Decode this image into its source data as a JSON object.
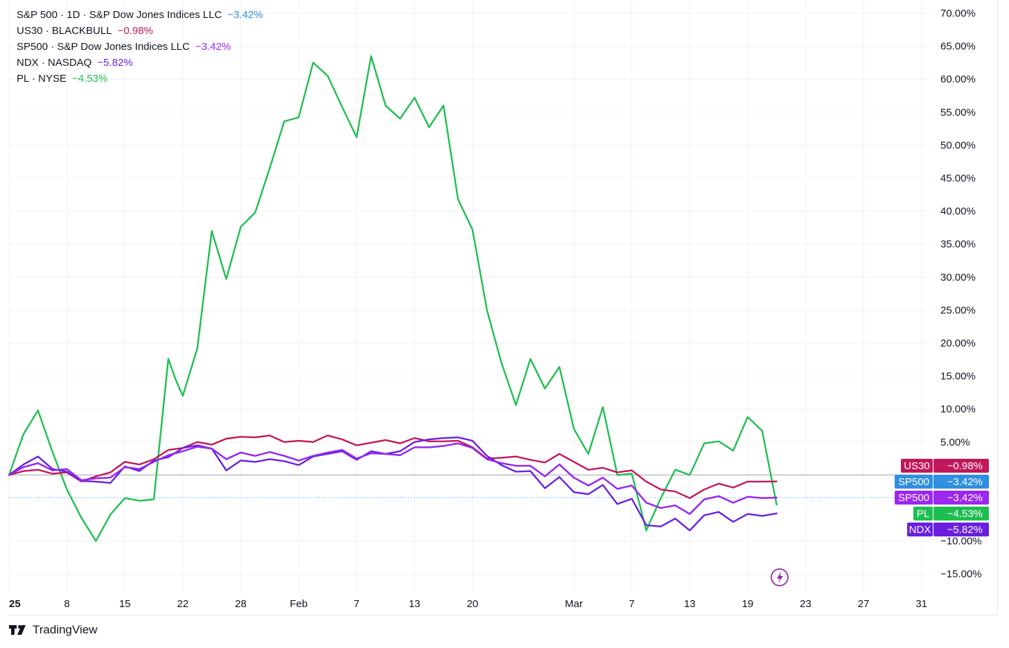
{
  "legend": [
    {
      "symbol": "S&P 500 · 1D · S&P Dow Jones Indices LLC",
      "change": "−3.42%",
      "color": "#2f8fe0"
    },
    {
      "symbol": "US30 · BLACKBULL",
      "change": "−0.98%",
      "color": "#c2185b"
    },
    {
      "symbol": "SP500 · S&P Dow Jones Indices LLC",
      "change": "−3.42%",
      "color": "#9c27f0"
    },
    {
      "symbol": "NDX · NASDAQ",
      "change": "−5.82%",
      "color": "#6a1fe0"
    },
    {
      "symbol": "PL · NYSE",
      "change": "−4.53%",
      "color": "#1fbf4f"
    }
  ],
  "branding": {
    "name": "TradingView",
    "logo_icon": "tradingview-logo-icon"
  },
  "flash_icon": "lightning-icon",
  "chart_data": {
    "type": "line",
    "y_axis": {
      "ticks": [
        "70.00%",
        "65.00%",
        "60.00%",
        "55.00%",
        "50.00%",
        "45.00%",
        "40.00%",
        "35.00%",
        "30.00%",
        "25.00%",
        "20.00%",
        "15.00%",
        "10.00%",
        "5.00%",
        "−10.00%",
        "−15.00%"
      ],
      "tick_values": [
        70,
        65,
        60,
        55,
        50,
        45,
        40,
        35,
        30,
        25,
        20,
        15,
        10,
        5,
        -10,
        -15
      ],
      "ylim": [
        -16.5,
        71.8
      ],
      "position": "right",
      "grid": true
    },
    "x_axis": {
      "ticks": [
        {
          "label": "25",
          "d": 0,
          "bold": true
        },
        {
          "label": "8",
          "d": 8
        },
        {
          "label": "15",
          "d": 16
        },
        {
          "label": "22",
          "d": 24
        },
        {
          "label": "28",
          "d": 32
        },
        {
          "label": "Feb",
          "d": 40
        },
        {
          "label": "7",
          "d": 48
        },
        {
          "label": "13",
          "d": 56
        },
        {
          "label": "20",
          "d": 64
        },
        {
          "label": "Mar",
          "d": 78
        },
        {
          "label": "7",
          "d": 86
        },
        {
          "label": "13",
          "d": 94
        },
        {
          "label": "19",
          "d": 102
        },
        {
          "label": "23",
          "d": 110
        },
        {
          "label": "27",
          "d": 118
        },
        {
          "label": "31",
          "d": 126
        }
      ],
      "xlim": [
        0,
        127
      ]
    },
    "baseline": 0,
    "series": [
      {
        "name": "PL",
        "color": "#1fbf4f",
        "x": [
          0,
          2,
          4,
          6,
          8,
          10,
          12,
          14,
          16,
          18,
          20,
          22,
          23,
          24,
          26,
          28,
          30,
          32,
          34,
          36,
          38,
          40,
          42,
          44,
          46,
          48,
          50,
          52,
          54,
          56,
          58,
          60,
          62,
          64,
          66,
          68,
          70,
          72,
          74,
          76,
          78,
          80,
          82,
          84,
          86,
          88,
          90,
          92,
          94,
          96,
          98,
          100,
          102,
          104,
          106
        ],
        "values": [
          0,
          6.2,
          9.8,
          3.5,
          -2.2,
          -6.5,
          -10.0,
          -6.0,
          -3.5,
          -3.9,
          -3.7,
          17.6,
          14.5,
          12.0,
          19.2,
          37.0,
          29.7,
          37.6,
          39.8,
          46.5,
          53.6,
          54.2,
          62.5,
          60.5,
          55.8,
          51.2,
          63.5,
          56.0,
          54.0,
          57.2,
          52.7,
          56.0,
          41.8,
          37.2,
          25.0,
          17.0,
          10.6,
          17.6,
          13.1,
          16.4,
          7.0,
          3.2,
          10.3,
          0,
          0.2,
          -8.4,
          -3.5,
          0.8,
          0,
          4.8,
          5.1,
          3.7,
          8.8,
          6.7,
          -4.5
        ]
      },
      {
        "name": "US30",
        "color": "#c2185b",
        "x": [
          0,
          2,
          4,
          6,
          8,
          10,
          12,
          14,
          16,
          18,
          20,
          22,
          24,
          26,
          28,
          30,
          32,
          34,
          36,
          38,
          40,
          42,
          44,
          46,
          48,
          50,
          52,
          54,
          56,
          58,
          60,
          62,
          64,
          66,
          68,
          70,
          72,
          74,
          76,
          78,
          80,
          82,
          84,
          86,
          88,
          90,
          92,
          94,
          96,
          98,
          100,
          102,
          104,
          106
        ],
        "values": [
          0,
          0.6,
          0.8,
          0.2,
          0.4,
          -1.0,
          -0.2,
          0.4,
          2.0,
          1.6,
          2.4,
          3.8,
          4.1,
          5.0,
          4.6,
          5.5,
          5.8,
          5.7,
          6.0,
          5.0,
          5.2,
          5.0,
          6.0,
          5.4,
          4.5,
          4.9,
          5.3,
          4.8,
          5.6,
          5.1,
          5.1,
          5.2,
          4.2,
          2.5,
          2.6,
          2.8,
          2.3,
          1.9,
          3.2,
          2.0,
          0.8,
          1.1,
          0.4,
          0.7,
          -1.0,
          -2.2,
          -2.5,
          -3.5,
          -2.2,
          -1.3,
          -1.9,
          -1.0,
          -1.0,
          -0.98
        ]
      },
      {
        "name": "SP500",
        "color": "#2f8fe0",
        "x": [
          0,
          2,
          4,
          6,
          8,
          10,
          12,
          14,
          16,
          18,
          20,
          22,
          24,
          26,
          28,
          30,
          32,
          34,
          36,
          38,
          40,
          42,
          44,
          46,
          48,
          50,
          52,
          54,
          56,
          58,
          60,
          62,
          64,
          66,
          68,
          70,
          72,
          74,
          76,
          78,
          80,
          82,
          84,
          86,
          88,
          90,
          92,
          94,
          96,
          98,
          100,
          102,
          104,
          106
        ],
        "values": [
          0,
          1.2,
          1.8,
          0.7,
          0.9,
          -0.8,
          -0.5,
          -0.4,
          1.2,
          0.9,
          2.0,
          3.0,
          3.6,
          4.3,
          4.0,
          2.4,
          3.4,
          2.9,
          3.5,
          2.9,
          2.2,
          2.9,
          3.4,
          3.8,
          2.5,
          3.3,
          3.2,
          3.0,
          4.2,
          4.2,
          4.4,
          4.8,
          4.1,
          2.4,
          1.8,
          1.4,
          1.4,
          -0.2,
          1.6,
          -0.4,
          -1.6,
          -0.4,
          -2.1,
          -1.6,
          -4.2,
          -5.0,
          -4.6,
          -5.9,
          -3.7,
          -3.2,
          -4.2,
          -3.3,
          -3.5,
          -3.42
        ]
      },
      {
        "name": "NDX",
        "color": "#6a1fe0",
        "x": [
          0,
          2,
          4,
          6,
          8,
          10,
          12,
          14,
          16,
          18,
          20,
          22,
          24,
          26,
          28,
          30,
          32,
          34,
          36,
          38,
          40,
          42,
          44,
          46,
          48,
          50,
          52,
          54,
          56,
          58,
          60,
          62,
          64,
          66,
          68,
          70,
          72,
          74,
          76,
          78,
          80,
          82,
          84,
          86,
          88,
          90,
          92,
          94,
          96,
          98,
          100,
          102,
          104,
          106
        ],
        "values": [
          0,
          1.6,
          2.8,
          0.9,
          0.5,
          -0.9,
          -1.0,
          -1.2,
          1.3,
          0.6,
          2.2,
          2.7,
          4.1,
          4.5,
          4.0,
          0.7,
          2.2,
          2.0,
          2.4,
          2.1,
          1.5,
          2.8,
          3.2,
          3.6,
          2.3,
          3.6,
          3.2,
          3.6,
          5.0,
          5.4,
          5.6,
          5.7,
          5.2,
          2.9,
          1.5,
          0.5,
          0.6,
          -2.0,
          -0.3,
          -2.6,
          -2.9,
          -1.5,
          -4.4,
          -3.6,
          -7.6,
          -7.8,
          -6.6,
          -8.4,
          -6.1,
          -5.6,
          -7.1,
          -5.9,
          -6.2,
          -5.82
        ]
      },
      {
        "name": "SP500 (S&P 500)",
        "color": "#9c27f0",
        "x": [
          0,
          2,
          4,
          6,
          8,
          10,
          12,
          14,
          16,
          18,
          20,
          22,
          24,
          26,
          28,
          30,
          32,
          34,
          36,
          38,
          40,
          42,
          44,
          46,
          48,
          50,
          52,
          54,
          56,
          58,
          60,
          62,
          64,
          66,
          68,
          70,
          72,
          74,
          76,
          78,
          80,
          82,
          84,
          86,
          88,
          90,
          92,
          94,
          96,
          98,
          100,
          102,
          104,
          106
        ],
        "values": [
          0,
          1.2,
          1.8,
          0.7,
          0.9,
          -0.8,
          -0.5,
          -0.4,
          1.2,
          0.9,
          2.0,
          3.0,
          3.6,
          4.3,
          4.0,
          2.4,
          3.4,
          2.9,
          3.5,
          2.9,
          2.2,
          2.9,
          3.4,
          3.8,
          2.5,
          3.3,
          3.2,
          3.0,
          4.2,
          4.2,
          4.4,
          4.8,
          4.1,
          2.4,
          1.8,
          1.4,
          1.4,
          -0.2,
          1.6,
          -0.4,
          -1.6,
          -0.4,
          -2.1,
          -1.6,
          -4.2,
          -5.0,
          -4.6,
          -5.9,
          -3.7,
          -3.2,
          -4.2,
          -3.3,
          -3.5,
          -3.42
        ]
      }
    ],
    "last_value_labels": [
      {
        "name": "US30",
        "value_text": "−0.98%",
        "color": "#c2185b"
      },
      {
        "name": "SP500",
        "value_text": "−3.42%",
        "color": "#2f8fe0"
      },
      {
        "name": "SP500",
        "value_text": "−3.42%",
        "color": "#9c27f0"
      },
      {
        "name": "PL",
        "value_text": "−4.53%",
        "color": "#1fbf4f"
      },
      {
        "name": "NDX",
        "value_text": "−5.82%",
        "color": "#6a1fe0"
      }
    ]
  }
}
